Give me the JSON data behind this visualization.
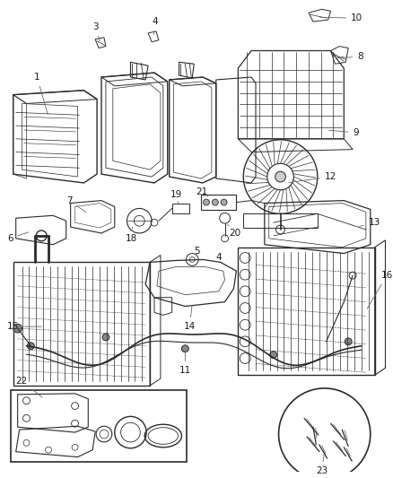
{
  "background_color": "#ffffff",
  "line_color": "#2a2a2a",
  "fig_width": 4.38,
  "fig_height": 5.33,
  "dpi": 100,
  "label_fontsize": 7.5,
  "label_color": "#1a1a1a"
}
